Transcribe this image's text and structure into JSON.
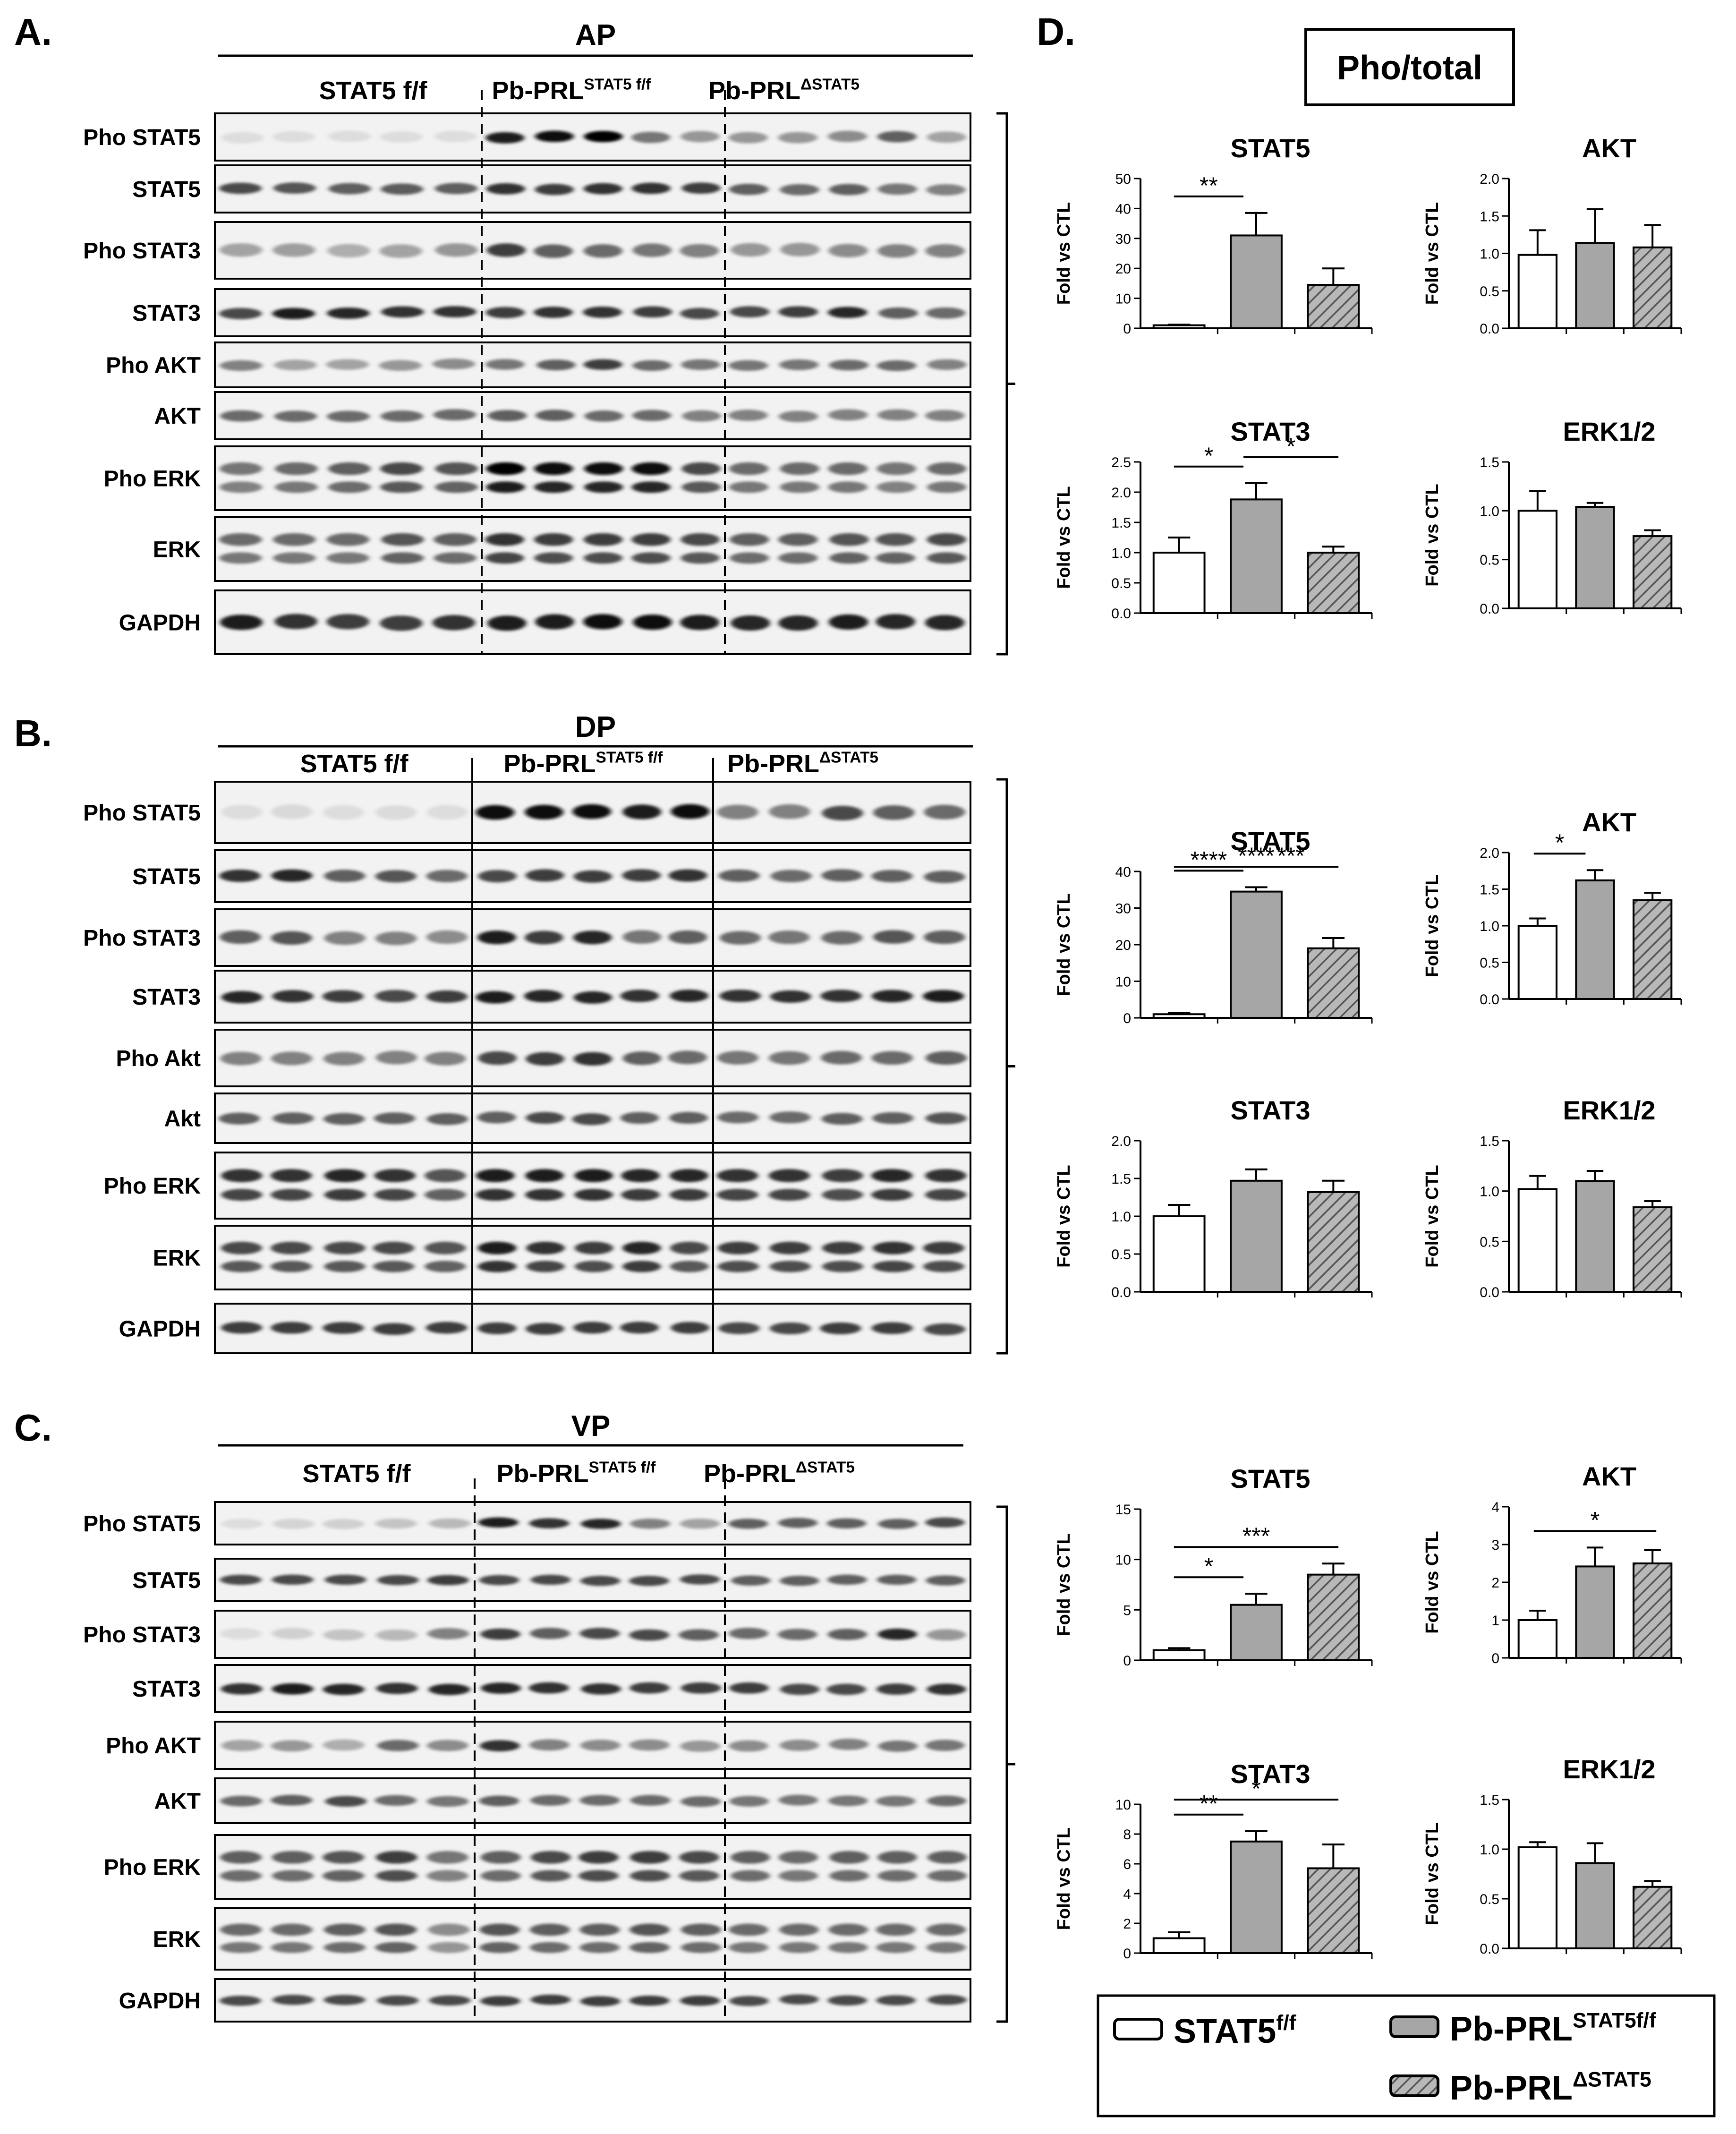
{
  "panels": {
    "A": {
      "letter": "A.",
      "tissue": "AP",
      "groups": [
        {
          "label": "STAT5 f/f",
          "sup": ""
        },
        {
          "label": "Pb-PRL",
          "sup": "STAT5 f/f"
        },
        {
          "label": "Pb-PRL",
          "sup": "ΔSTAT5"
        }
      ],
      "rows": [
        "Pho STAT5",
        "STAT5",
        "Pho STAT3",
        "STAT3",
        "Pho AKT",
        "AKT",
        "Pho ERK",
        "ERK",
        "GAPDH"
      ]
    },
    "B": {
      "letter": "B.",
      "tissue": "DP",
      "groups": [
        {
          "label": "STAT5 f/f",
          "sup": ""
        },
        {
          "label": "Pb-PRL",
          "sup": "STAT5 f/f"
        },
        {
          "label": "Pb-PRL",
          "sup": "ΔSTAT5"
        }
      ],
      "rows": [
        "Pho STAT5",
        "STAT5",
        "Pho STAT3",
        "STAT3",
        "Pho Akt",
        "Akt",
        "Pho ERK",
        "ERK",
        "GAPDH"
      ]
    },
    "C": {
      "letter": "C.",
      "tissue": "VP",
      "groups": [
        {
          "label": "STAT5 f/f",
          "sup": ""
        },
        {
          "label": "Pb-PRL",
          "sup": "STAT5 f/f"
        },
        {
          "label": "Pb-PRL",
          "sup": "ΔSTAT5"
        }
      ],
      "rows": [
        "Pho STAT5",
        "STAT5",
        "Pho STAT3",
        "STAT3",
        "Pho AKT",
        "AKT",
        "Pho ERK",
        "ERK",
        "GAPDH"
      ]
    }
  },
  "panel_d": {
    "letter": "D.",
    "header": "Pho/total"
  },
  "legend": {
    "items": [
      {
        "label": "STAT5",
        "sup": "f/f",
        "fill": "open"
      },
      {
        "label": "Pb-PRL",
        "sup": "STAT5f/f",
        "fill": "gray"
      },
      {
        "label": "Pb-PRL",
        "sup": "ΔSTAT5",
        "fill": "hatched"
      }
    ]
  },
  "colors": {
    "open": "#ffffff",
    "gray": "#a6a6a6",
    "hatch": "#6e6e6e",
    "ink": "#000000"
  },
  "chart_data": [
    {
      "type": "bar",
      "tissue": "AP",
      "title": "STAT5",
      "ylabel": "Fold vs CTL",
      "ylim": [
        0,
        50
      ],
      "yticks": [
        "0",
        "10",
        "20",
        "30",
        "40",
        "50"
      ],
      "values": [
        1,
        31,
        14.5
      ],
      "errors": [
        0.2,
        7.5,
        5.5
      ],
      "sig": [
        {
          "from": 0,
          "to": 1,
          "label": "**"
        }
      ]
    },
    {
      "type": "bar",
      "tissue": "AP",
      "title": "AKT",
      "ylabel": "Fold vs CTL",
      "ylim": [
        0,
        2.0
      ],
      "yticks": [
        "0.0",
        "0.5",
        "1.0",
        "1.5",
        "2.0"
      ],
      "values": [
        0.98,
        1.14,
        1.08
      ],
      "errors": [
        0.33,
        0.45,
        0.3
      ],
      "sig": []
    },
    {
      "type": "bar",
      "tissue": "AP",
      "title": "STAT3",
      "ylabel": "Fold vs CTL",
      "ylim": [
        0,
        2.5
      ],
      "yticks": [
        "0.0",
        "0.5",
        "1.0",
        "1.5",
        "2.0",
        "2.5"
      ],
      "values": [
        1.0,
        1.88,
        1.0
      ],
      "errors": [
        0.25,
        0.27,
        0.1
      ],
      "sig": [
        {
          "from": 0,
          "to": 1,
          "label": "*"
        },
        {
          "from": 1,
          "to": 2,
          "label": "*"
        }
      ]
    },
    {
      "type": "bar",
      "tissue": "AP",
      "title": "ERK1/2",
      "ylabel": "Fold vs CTL",
      "ylim": [
        0,
        1.5
      ],
      "yticks": [
        "0.0",
        "0.5",
        "1.0",
        "1.5"
      ],
      "values": [
        1.0,
        1.04,
        0.74
      ],
      "errors": [
        0.2,
        0.04,
        0.06
      ],
      "sig": []
    },
    {
      "type": "bar",
      "tissue": "DP",
      "title": "STAT5",
      "ylabel": "Fold vs CTL",
      "ylim": [
        0,
        40
      ],
      "yticks": [
        "0",
        "10",
        "20",
        "30",
        "40"
      ],
      "values": [
        1,
        34.5,
        19
      ],
      "errors": [
        0.4,
        1.2,
        2.8
      ],
      "sig": [
        {
          "from": 0,
          "to": 1,
          "label": "****"
        },
        {
          "from": 1,
          "to": 2,
          "label": "***"
        },
        {
          "from": 0,
          "to": 2,
          "label": "****"
        }
      ]
    },
    {
      "type": "bar",
      "tissue": "DP",
      "title": "AKT",
      "ylabel": "Fold vs CTL",
      "ylim": [
        0,
        2.0
      ],
      "yticks": [
        "0.0",
        "0.5",
        "1.0",
        "1.5",
        "2.0"
      ],
      "values": [
        1.0,
        1.62,
        1.35
      ],
      "errors": [
        0.1,
        0.14,
        0.1
      ],
      "sig": [
        {
          "from": 0,
          "to": 1,
          "label": "*"
        }
      ]
    },
    {
      "type": "bar",
      "tissue": "DP",
      "title": "STAT3",
      "ylabel": "Fold vs CTL",
      "ylim": [
        0,
        2.0
      ],
      "yticks": [
        "0.0",
        "0.5",
        "1.0",
        "1.5",
        "2.0"
      ],
      "values": [
        1.0,
        1.47,
        1.32
      ],
      "errors": [
        0.15,
        0.15,
        0.15
      ],
      "sig": []
    },
    {
      "type": "bar",
      "tissue": "DP",
      "title": "ERK1/2",
      "ylabel": "Fold vs CTL",
      "ylim": [
        0,
        1.5
      ],
      "yticks": [
        "0.0",
        "0.5",
        "1.0",
        "1.5"
      ],
      "values": [
        1.02,
        1.1,
        0.84
      ],
      "errors": [
        0.13,
        0.1,
        0.06
      ],
      "sig": []
    },
    {
      "type": "bar",
      "tissue": "VP",
      "title": "STAT5",
      "ylabel": "Fold vs CTL",
      "ylim": [
        0,
        15
      ],
      "yticks": [
        "0",
        "5",
        "10",
        "15"
      ],
      "values": [
        1,
        5.5,
        8.5
      ],
      "errors": [
        0.2,
        1.1,
        1.1
      ],
      "sig": [
        {
          "from": 0,
          "to": 1,
          "label": "*"
        },
        {
          "from": 0,
          "to": 2,
          "label": "***"
        }
      ]
    },
    {
      "type": "bar",
      "tissue": "VP",
      "title": "AKT",
      "ylabel": "Fold vs CTL",
      "ylim": [
        0,
        4
      ],
      "yticks": [
        "0",
        "1",
        "2",
        "3",
        "4"
      ],
      "values": [
        1.0,
        2.42,
        2.5
      ],
      "errors": [
        0.25,
        0.5,
        0.35
      ],
      "sig": [
        {
          "from": 0,
          "to": 2,
          "label": "*"
        }
      ]
    },
    {
      "type": "bar",
      "tissue": "VP",
      "title": "STAT3",
      "ylabel": "Fold vs CTL",
      "ylim": [
        0,
        10
      ],
      "yticks": [
        "0",
        "2",
        "4",
        "6",
        "8",
        "10"
      ],
      "values": [
        1,
        7.5,
        5.7
      ],
      "errors": [
        0.4,
        0.7,
        1.6
      ],
      "sig": [
        {
          "from": 0,
          "to": 1,
          "label": "**"
        },
        {
          "from": 0,
          "to": 2,
          "label": "*"
        }
      ]
    },
    {
      "type": "bar",
      "tissue": "VP",
      "title": "ERK1/2",
      "ylabel": "Fold vs CTL",
      "ylim": [
        0,
        1.5
      ],
      "yticks": [
        "0.0",
        "0.5",
        "1.0",
        "1.5"
      ],
      "values": [
        1.02,
        0.86,
        0.62
      ],
      "errors": [
        0.05,
        0.2,
        0.06
      ],
      "sig": []
    }
  ]
}
